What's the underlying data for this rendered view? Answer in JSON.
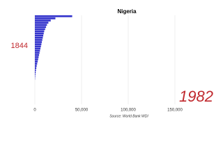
{
  "chart_data": {
    "type": "bar",
    "orientation": "horizontal",
    "title": "Nigeria",
    "source": "Source: World Bank WDI",
    "label": "1844",
    "year": "1982",
    "categories": [
      null,
      null,
      null,
      null,
      null,
      null,
      null,
      null,
      null,
      null,
      null,
      null,
      null,
      null,
      null,
      null,
      null,
      null,
      null,
      null,
      null,
      null,
      null,
      null,
      null,
      null,
      null,
      null,
      null,
      null
    ],
    "values": [
      40000,
      22000,
      17000,
      14500,
      13000,
      12000,
      11000,
      10000,
      9500,
      9000,
      8500,
      8000,
      7500,
      7000,
      6500,
      6000,
      5500,
      5000,
      4500,
      4000,
      3500,
      3000,
      2500,
      2000,
      1600,
      1200,
      900,
      600,
      400,
      200
    ],
    "color": "#3333cc",
    "xlim": [
      0,
      200000
    ],
    "xticks": [
      0,
      {
        "value": 50000,
        "label": "50,000"
      },
      {
        "value": 100000,
        "label": "100,000"
      },
      {
        "value": 150000,
        "label": "150,000"
      }
    ],
    "grid": true
  }
}
